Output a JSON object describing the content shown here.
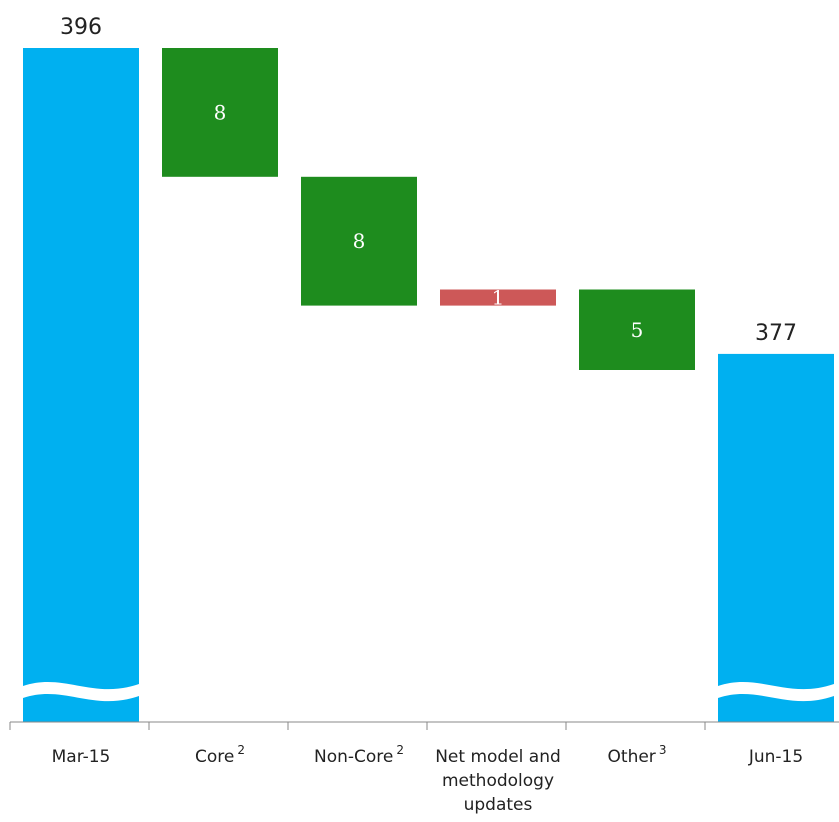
{
  "chart_data": {
    "type": "bar",
    "subtype": "waterfall",
    "categories": [
      {
        "label": "Mar-15",
        "superscript": "",
        "lines": [
          "Mar-15"
        ]
      },
      {
        "label": "Core",
        "superscript": "2",
        "lines": [
          "Core"
        ]
      },
      {
        "label": "Non-Core",
        "superscript": "2",
        "lines": [
          "Non-Core"
        ]
      },
      {
        "label": "Net model and methodology updates",
        "superscript": "",
        "lines": [
          "Net model and",
          "methodology",
          "updates"
        ]
      },
      {
        "label": "Other",
        "superscript": "3",
        "lines": [
          "Other"
        ]
      },
      {
        "label": "Jun-15",
        "superscript": "",
        "lines": [
          "Jun-15"
        ]
      }
    ],
    "bars": [
      {
        "kind": "total",
        "value": 396,
        "label": "396",
        "color": "#00b0f0"
      },
      {
        "kind": "decrease",
        "value": -8,
        "label": "8",
        "color": "#1e8c1e"
      },
      {
        "kind": "decrease",
        "value": -8,
        "label": "8",
        "color": "#1e8c1e"
      },
      {
        "kind": "increase",
        "value": 1,
        "label": "1",
        "color": "#cd5858"
      },
      {
        "kind": "decrease",
        "value": -5,
        "label": "5",
        "color": "#1e8c1e"
      },
      {
        "kind": "total",
        "value": 377,
        "label": "377",
        "color": "#00b0f0"
      }
    ],
    "axis_break": true,
    "grid": false,
    "legend": "none",
    "colors": {
      "total": "#00b0f0",
      "decrease": "#1e8c1e",
      "increase": "#cd5858",
      "axis": "#888888"
    }
  }
}
